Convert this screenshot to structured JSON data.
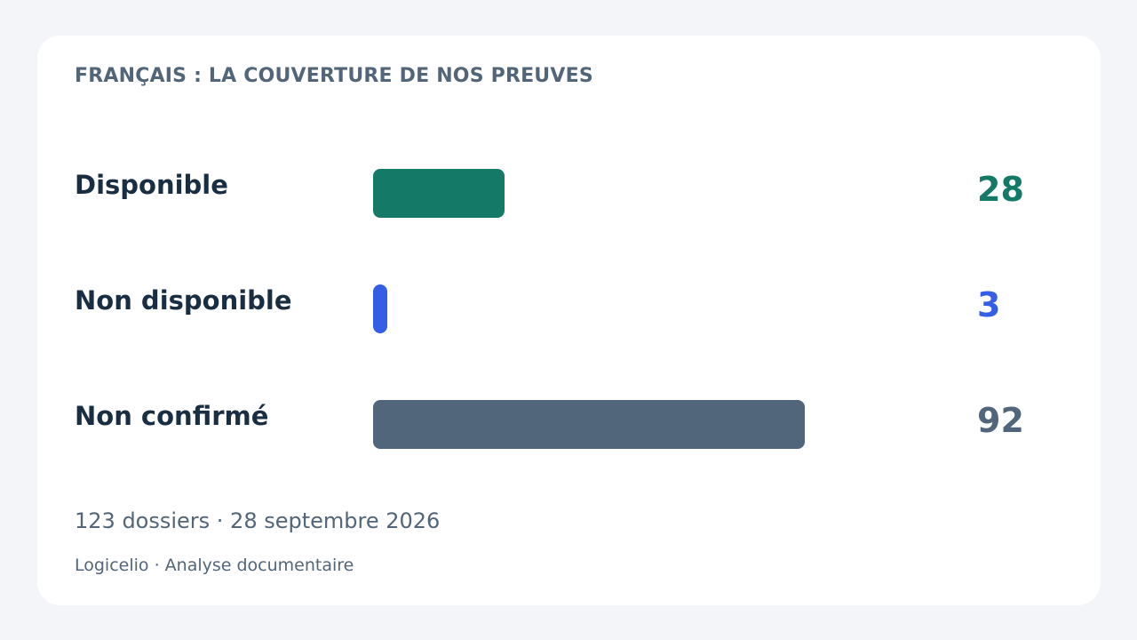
{
  "title": "FRANÇAIS : LA COUVERTURE DE NOS PREUVES",
  "chart_data": {
    "type": "bar",
    "orientation": "horizontal",
    "categories": [
      "Disponible",
      "Non disponible",
      "Non confirmé"
    ],
    "values": [
      28,
      3,
      92
    ],
    "value_labels": [
      "28",
      "3",
      "92"
    ],
    "colors": [
      "#147a67",
      "#355ee6",
      "#52667b"
    ],
    "xlim": [
      0,
      106
    ]
  },
  "footer": {
    "summary": "123 dossiers · 28 septembre 2026",
    "brand": "Logicelio · Analyse documentaire"
  }
}
